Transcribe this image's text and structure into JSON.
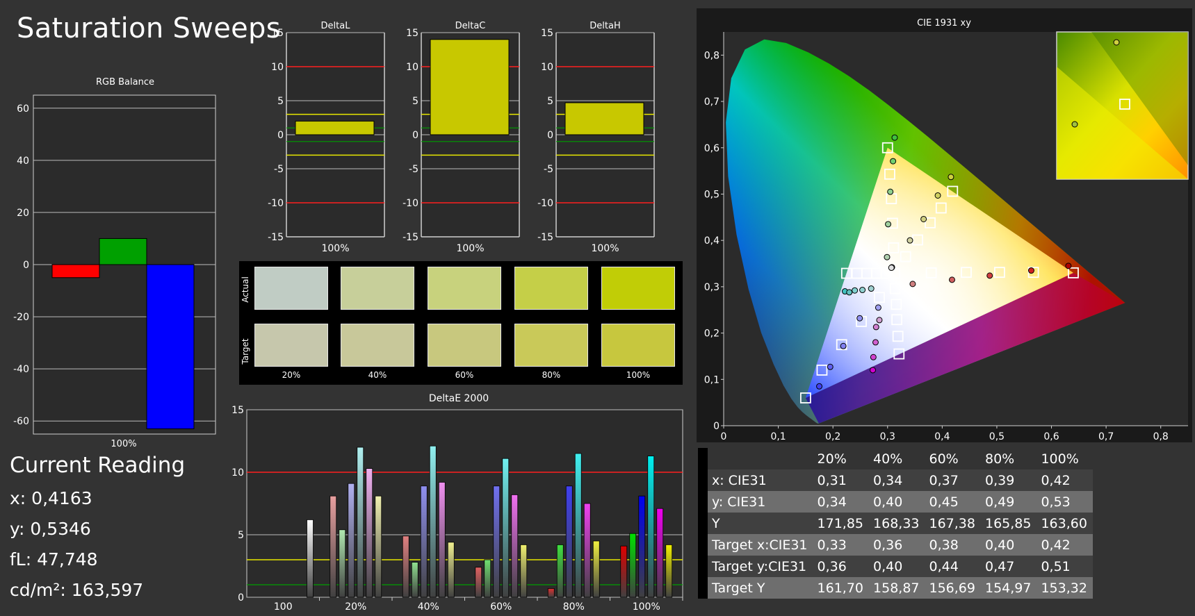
{
  "title": "Saturation Sweeps",
  "rgb_balance": {
    "title": "RGB Balance",
    "yticks": [
      "60",
      "40",
      "20",
      "0",
      "-20",
      "-40",
      "-60"
    ],
    "xlabel": "100%"
  },
  "delta_titles": [
    "DeltaL",
    "DeltaC",
    "DeltaH"
  ],
  "delta_yticks": [
    "15",
    "10",
    "5",
    "0",
    "-5",
    "-10",
    "-15"
  ],
  "delta_xlabel": "100%",
  "swatches": {
    "actual_label": "Actual",
    "target_label": "Target",
    "labels": [
      "20%",
      "40%",
      "60%",
      "80%",
      "100%"
    ],
    "actual_colors": [
      "#c0ccc4",
      "#c7cf9a",
      "#c8d27d",
      "#c5cf48",
      "#c1cd06"
    ],
    "target_colors": [
      "#c6c7ac",
      "#c8c89a",
      "#c8c87e",
      "#c9c959",
      "#c7c73e"
    ]
  },
  "deltae": {
    "title": "DeltaE 2000",
    "yticks": [
      "15",
      "10",
      "5",
      "0"
    ],
    "xlabels": [
      "100",
      "20%",
      "40%",
      "60%",
      "80%",
      "100%"
    ]
  },
  "cie": {
    "title": "CIE 1931 xy",
    "xticks": [
      "0",
      "0,1",
      "0,2",
      "0,3",
      "0,4",
      "0,5",
      "0,6",
      "0,7",
      "0,8"
    ],
    "yticks": [
      "0",
      "0,1",
      "0,2",
      "0,3",
      "0,4",
      "0,5",
      "0,6",
      "0,7",
      "0,8"
    ]
  },
  "current_reading": {
    "heading": "Current Reading",
    "x": "x: 0,4163",
    "y": "y: 0,5346",
    "fl": "fL: 47,748",
    "cdm2": "cd/m²: 163,597"
  },
  "table": {
    "headers": [
      "20%",
      "40%",
      "60%",
      "80%",
      "100%"
    ],
    "rows": [
      {
        "label": "x: CIE31",
        "values": [
          "0,31",
          "0,34",
          "0,37",
          "0,39",
          "0,42"
        ]
      },
      {
        "label": "y: CIE31",
        "values": [
          "0,34",
          "0,40",
          "0,45",
          "0,49",
          "0,53"
        ]
      },
      {
        "label": "Y",
        "values": [
          "171,85",
          "168,33",
          "167,38",
          "165,85",
          "163,60"
        ]
      },
      {
        "label": "Target x:CIE31",
        "values": [
          "0,33",
          "0,36",
          "0,38",
          "0,40",
          "0,42"
        ]
      },
      {
        "label": "Target y:CIE31",
        "values": [
          "0,36",
          "0,40",
          "0,44",
          "0,47",
          "0,51"
        ]
      },
      {
        "label": "Target Y",
        "values": [
          "161,70",
          "158,87",
          "156,69",
          "154,97",
          "153,32"
        ]
      }
    ]
  },
  "chart_data": [
    {
      "type": "bar",
      "title": "RGB Balance",
      "categories": [
        "100%"
      ],
      "series": [
        {
          "name": "Red",
          "values": [
            -5
          ],
          "color": "#ff0000"
        },
        {
          "name": "Green",
          "values": [
            10
          ],
          "color": "#00a000"
        },
        {
          "name": "Blue",
          "values": [
            -63
          ],
          "color": "#0000ff"
        }
      ],
      "ylim": [
        -65,
        65
      ]
    },
    {
      "type": "bar",
      "title": "DeltaL",
      "categories": [
        "100%"
      ],
      "values": [
        2
      ],
      "ylim": [
        -15,
        15
      ],
      "thresholds": {
        "red": [
          10,
          -10
        ],
        "yellow": [
          3,
          -3
        ],
        "green": [
          1,
          -1
        ]
      }
    },
    {
      "type": "bar",
      "title": "DeltaC",
      "categories": [
        "100%"
      ],
      "values": [
        14
      ],
      "ylim": [
        -15,
        15
      ],
      "thresholds": {
        "red": [
          10,
          -10
        ],
        "yellow": [
          3,
          -3
        ],
        "green": [
          1,
          -1
        ]
      }
    },
    {
      "type": "bar",
      "title": "DeltaH",
      "categories": [
        "100%"
      ],
      "values": [
        4.7
      ],
      "ylim": [
        -15,
        15
      ],
      "thresholds": {
        "red": [
          10,
          -10
        ],
        "yellow": [
          3,
          -3
        ],
        "green": [
          1,
          -1
        ]
      }
    },
    {
      "type": "bar",
      "title": "DeltaE 2000",
      "categories": [
        "100",
        "20%",
        "40%",
        "60%",
        "80%",
        "100%"
      ],
      "groups": [
        {
          "category": "100",
          "bars": [
            {
              "value": 6.2,
              "color": "#ffffff"
            }
          ]
        },
        {
          "category": "20%",
          "bars": [
            {
              "value": 8.1,
              "color": "#e8a0a0"
            },
            {
              "value": 5.4,
              "color": "#b0e8b0"
            },
            {
              "value": 9.1,
              "color": "#b0b0f0"
            },
            {
              "value": 12.0,
              "color": "#b0f0f0"
            },
            {
              "value": 10.3,
              "color": "#f0b0f0"
            },
            {
              "value": 8.1,
              "color": "#f0f0b0"
            }
          ]
        },
        {
          "category": "40%",
          "bars": [
            {
              "value": 4.9,
              "color": "#e08080"
            },
            {
              "value": 2.8,
              "color": "#90e090"
            },
            {
              "value": 8.9,
              "color": "#9090f0"
            },
            {
              "value": 12.1,
              "color": "#90f0f0"
            },
            {
              "value": 9.2,
              "color": "#f090f0"
            },
            {
              "value": 4.4,
              "color": "#f0f090"
            }
          ]
        },
        {
          "category": "60%",
          "bars": [
            {
              "value": 2.4,
              "color": "#e06060"
            },
            {
              "value": 3.0,
              "color": "#70e070"
            },
            {
              "value": 8.9,
              "color": "#7070f0"
            },
            {
              "value": 11.1,
              "color": "#70f0f0"
            },
            {
              "value": 8.2,
              "color": "#f070f0"
            },
            {
              "value": 4.2,
              "color": "#f0f070"
            }
          ]
        },
        {
          "category": "80%",
          "bars": [
            {
              "value": 0.7,
              "color": "#e03030"
            },
            {
              "value": 4.2,
              "color": "#40e040"
            },
            {
              "value": 8.9,
              "color": "#4040f0"
            },
            {
              "value": 11.5,
              "color": "#40f0f0"
            },
            {
              "value": 7.5,
              "color": "#f040f0"
            },
            {
              "value": 4.5,
              "color": "#f0f040"
            }
          ]
        },
        {
          "category": "100%",
          "bars": [
            {
              "value": 4.1,
              "color": "#e00000"
            },
            {
              "value": 5.1,
              "color": "#00e000"
            },
            {
              "value": 8.1,
              "color": "#0000f0"
            },
            {
              "value": 11.3,
              "color": "#00f0f0"
            },
            {
              "value": 7.1,
              "color": "#f000f0"
            },
            {
              "value": 4.2,
              "color": "#f0f000"
            }
          ]
        }
      ],
      "ylim": [
        0,
        15
      ],
      "thresholds": {
        "red": 10,
        "yellow": 3,
        "green": 1
      }
    },
    {
      "type": "scatter",
      "title": "CIE 1931 xy",
      "xlim": [
        0,
        0.85
      ],
      "ylim": [
        0,
        0.85
      ],
      "gamut_triangle": [
        [
          0.64,
          0.33
        ],
        [
          0.3,
          0.6
        ],
        [
          0.15,
          0.06
        ]
      ],
      "targets": [
        [
          0.3127,
          0.329
        ],
        [
          0.64,
          0.33
        ],
        [
          0.567,
          0.331
        ],
        [
          0.505,
          0.331
        ],
        [
          0.444,
          0.331
        ],
        [
          0.38,
          0.33
        ],
        [
          0.3,
          0.6
        ],
        [
          0.304,
          0.543
        ],
        [
          0.307,
          0.49
        ],
        [
          0.309,
          0.437
        ],
        [
          0.311,
          0.384
        ],
        [
          0.15,
          0.06
        ],
        [
          0.18,
          0.12
        ],
        [
          0.216,
          0.175
        ],
        [
          0.252,
          0.225
        ],
        [
          0.285,
          0.277
        ],
        [
          0.225,
          0.329
        ],
        [
          0.244,
          0.329
        ],
        [
          0.262,
          0.329
        ],
        [
          0.28,
          0.329
        ],
        [
          0.297,
          0.329
        ],
        [
          0.321,
          0.155
        ],
        [
          0.319,
          0.193
        ],
        [
          0.317,
          0.229
        ],
        [
          0.316,
          0.262
        ],
        [
          0.314,
          0.296
        ],
        [
          0.333,
          0.365
        ],
        [
          0.355,
          0.401
        ],
        [
          0.378,
          0.438
        ],
        [
          0.398,
          0.47
        ],
        [
          0.419,
          0.506
        ]
      ],
      "measured": [
        {
          "x": 0.308,
          "y": 0.342,
          "color": "#ffffff"
        },
        {
          "x": 0.631,
          "y": 0.345,
          "color": "#b00000"
        },
        {
          "x": 0.563,
          "y": 0.335,
          "color": "#d02020"
        },
        {
          "x": 0.487,
          "y": 0.324,
          "color": "#d04040"
        },
        {
          "x": 0.418,
          "y": 0.315,
          "color": "#d06060"
        },
        {
          "x": 0.346,
          "y": 0.306,
          "color": "#d08080"
        },
        {
          "x": 0.313,
          "y": 0.622,
          "color": "#40c040"
        },
        {
          "x": 0.31,
          "y": 0.571,
          "color": "#70d070"
        },
        {
          "x": 0.305,
          "y": 0.505,
          "color": "#90d090"
        },
        {
          "x": 0.301,
          "y": 0.435,
          "color": "#a0d0a0"
        },
        {
          "x": 0.299,
          "y": 0.364,
          "color": "#b0d0b0"
        },
        {
          "x": 0.175,
          "y": 0.085,
          "color": "#4040f0"
        },
        {
          "x": 0.195,
          "y": 0.127,
          "color": "#6060f0"
        },
        {
          "x": 0.219,
          "y": 0.172,
          "color": "#8080f0"
        },
        {
          "x": 0.249,
          "y": 0.232,
          "color": "#9090f0"
        },
        {
          "x": 0.283,
          "y": 0.255,
          "color": "#a0a0f0"
        },
        {
          "x": 0.222,
          "y": 0.29,
          "color": "#40c0c0"
        },
        {
          "x": 0.23,
          "y": 0.288,
          "color": "#60c0c0"
        },
        {
          "x": 0.24,
          "y": 0.292,
          "color": "#80d0d0"
        },
        {
          "x": 0.254,
          "y": 0.293,
          "color": "#90d0d0"
        },
        {
          "x": 0.27,
          "y": 0.296,
          "color": "#a0d0d0"
        },
        {
          "x": 0.273,
          "y": 0.12,
          "color": "#d000d0"
        },
        {
          "x": 0.274,
          "y": 0.148,
          "color": "#d040d0"
        },
        {
          "x": 0.278,
          "y": 0.18,
          "color": "#d060d0"
        },
        {
          "x": 0.279,
          "y": 0.213,
          "color": "#d080d0"
        },
        {
          "x": 0.285,
          "y": 0.228,
          "color": "#d0a0d0"
        },
        {
          "x": 0.341,
          "y": 0.4,
          "color": "#d0d0a0"
        },
        {
          "x": 0.366,
          "y": 0.446,
          "color": "#d0d080"
        },
        {
          "x": 0.392,
          "y": 0.497,
          "color": "#d0d060"
        },
        {
          "x": 0.416,
          "y": 0.537,
          "color": "#d0d040"
        },
        {
          "x": 0.307,
          "y": 0.341,
          "color": "#e0e0e0"
        }
      ]
    }
  ]
}
